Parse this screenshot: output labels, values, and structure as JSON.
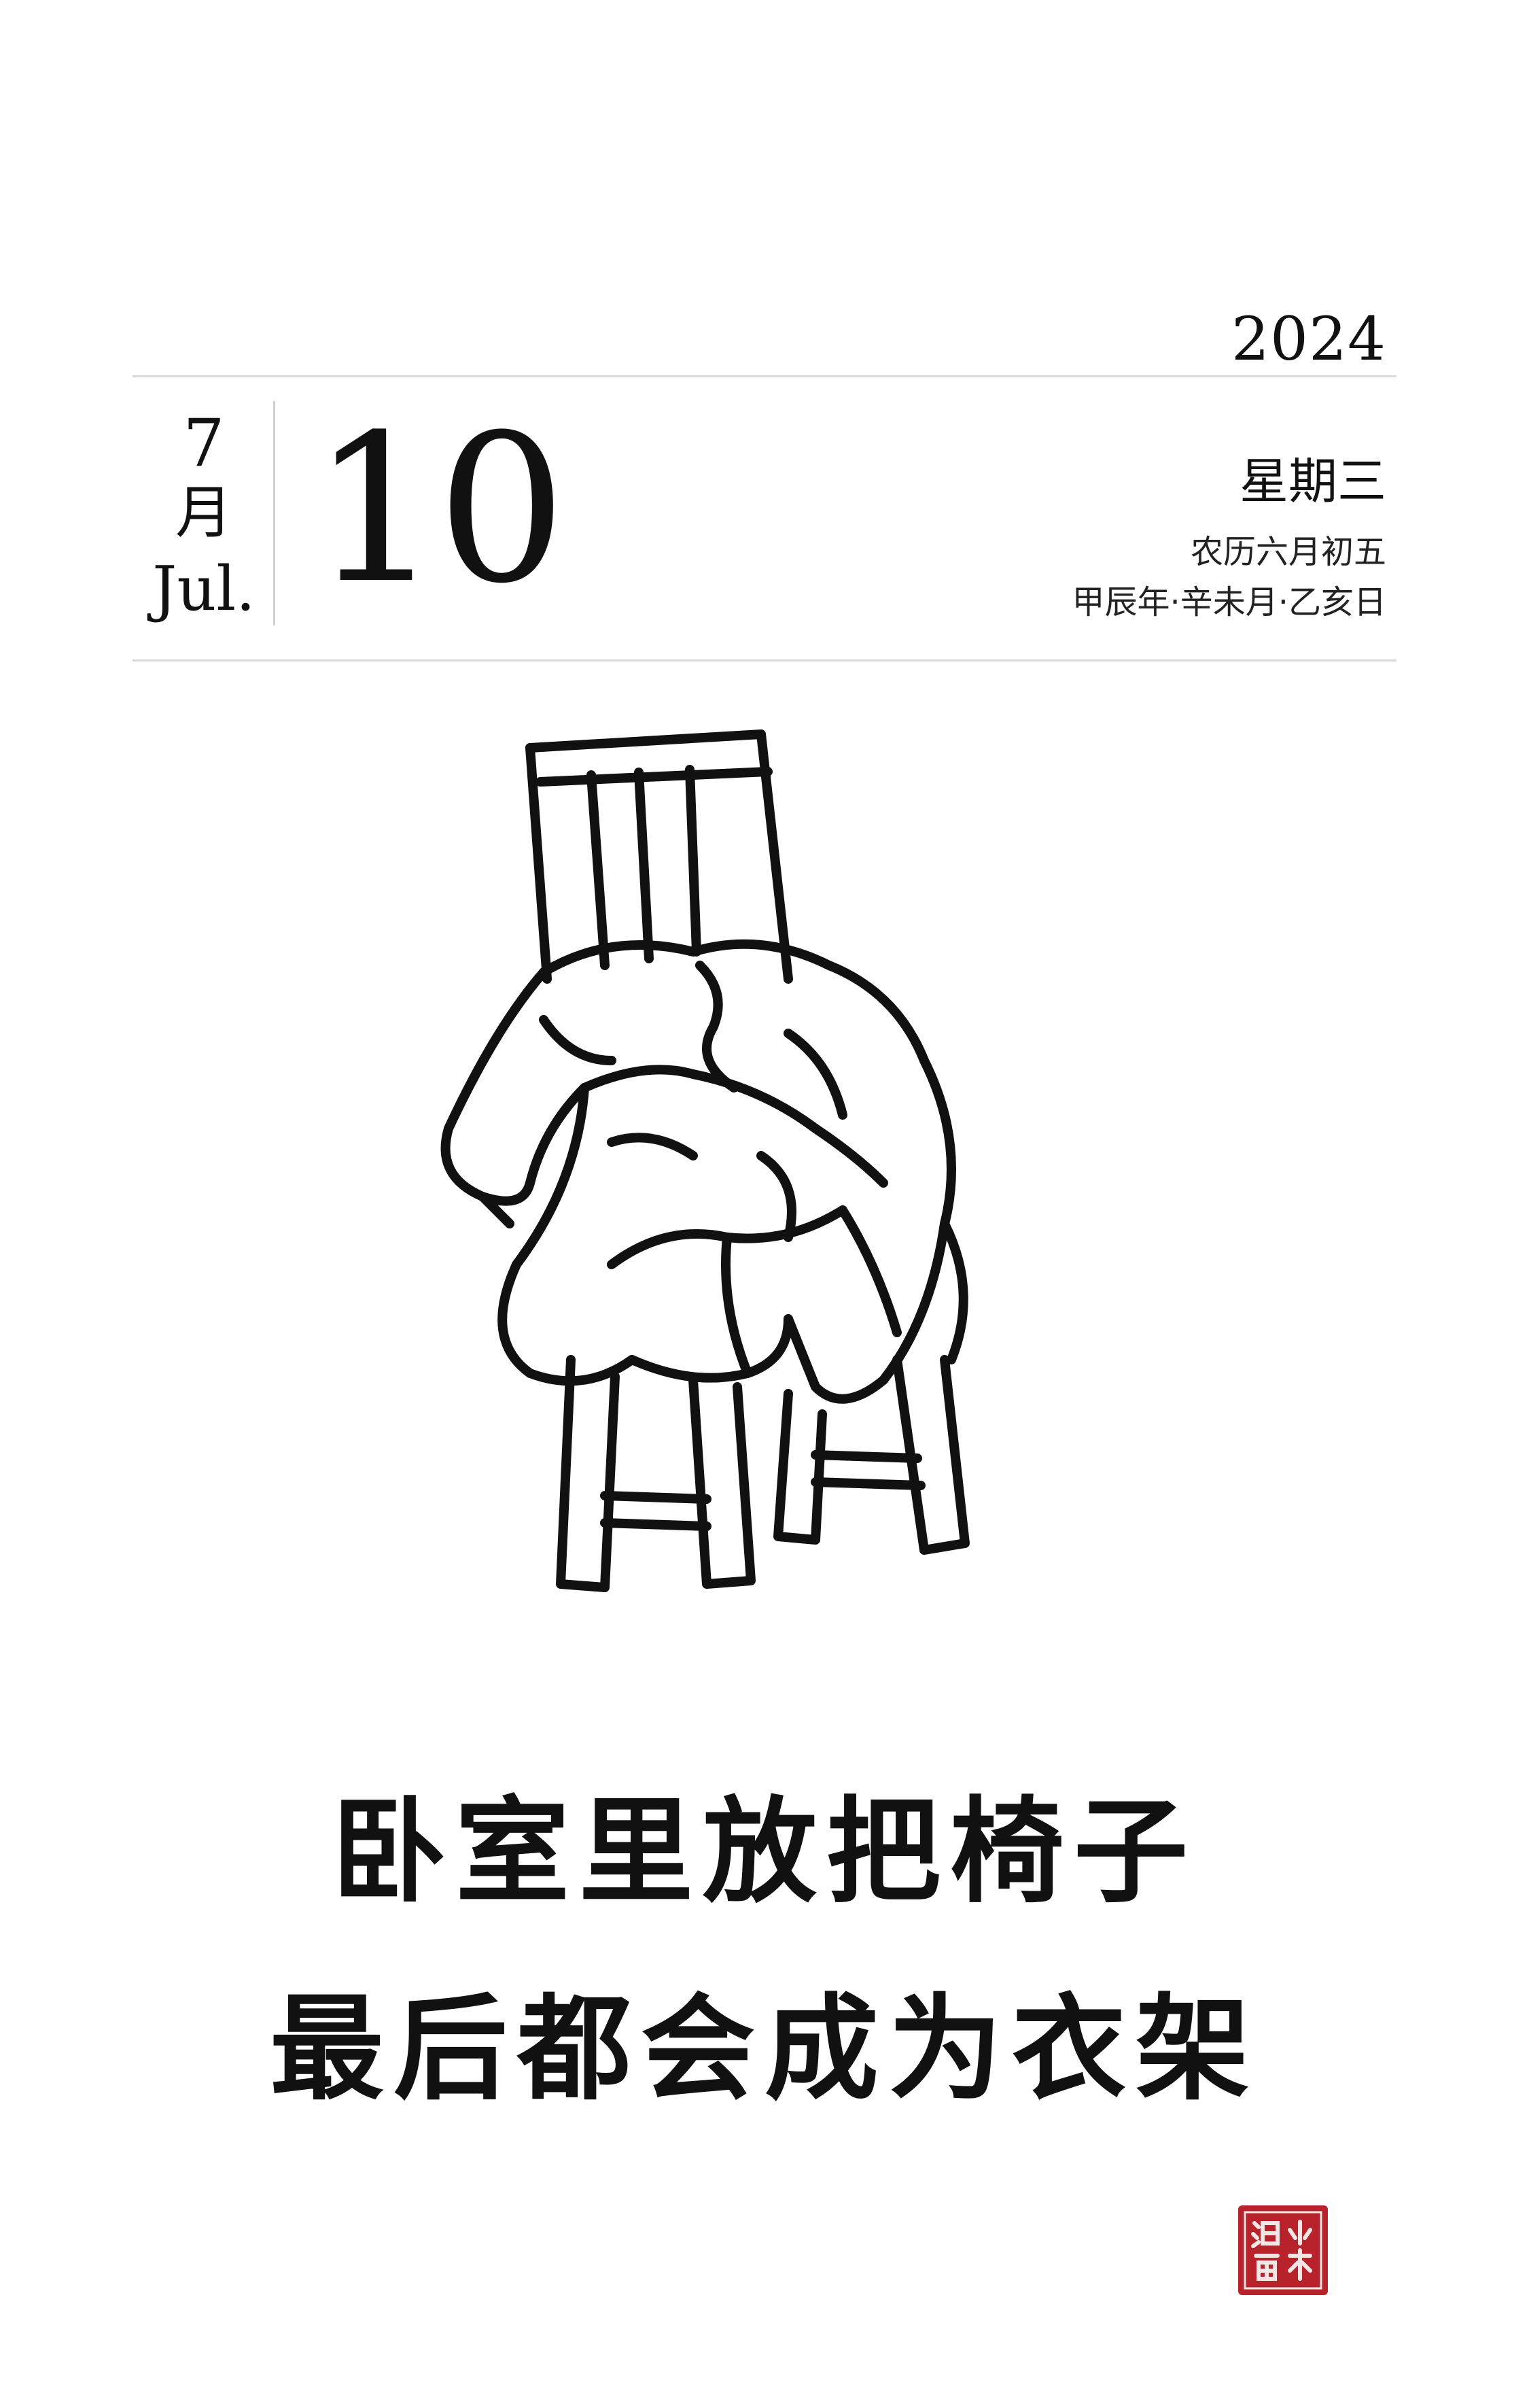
{
  "calendar": {
    "year": "2024",
    "month_number": "7",
    "month_cn": "月",
    "month_en": "Jul.",
    "day": "10",
    "weekday": "星期三",
    "lunar_date": "农历六月初五",
    "ganzhi": "甲辰年·辛未月·乙亥日"
  },
  "caption": {
    "line1": "卧室里放把椅子",
    "line2": "最后都会成为衣架"
  },
  "seal": {
    "text": "小林漫畫",
    "color": "#b8222a"
  }
}
